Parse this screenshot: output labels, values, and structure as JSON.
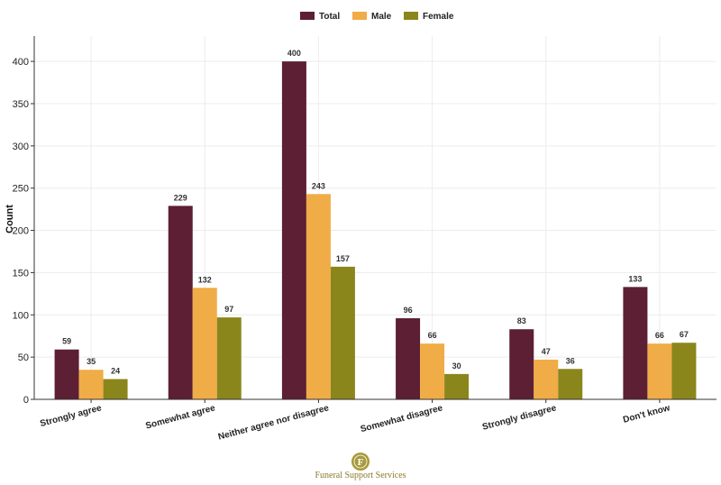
{
  "chart_data": {
    "type": "bar",
    "categories": [
      "Strongly agree",
      "Somewhat agree",
      "Neither agree nor disagree",
      "Somewhat disagree",
      "Strongly disagree",
      "Don't know"
    ],
    "series": [
      {
        "name": "Total",
        "values": [
          59,
          229,
          400,
          96,
          83,
          133
        ],
        "color": "#5c1f33"
      },
      {
        "name": "Male",
        "values": [
          35,
          132,
          243,
          66,
          47,
          66
        ],
        "color": "#f0ac46"
      },
      {
        "name": "Female",
        "values": [
          24,
          97,
          157,
          30,
          36,
          67
        ],
        "color": "#8b861c"
      }
    ],
    "ylabel": "Count",
    "xlabel": "",
    "ylim": [
      0,
      430
    ],
    "yticks": [
      0,
      50,
      100,
      150,
      200,
      250,
      300,
      350,
      400
    ],
    "grid": true,
    "legend_position": "top-center"
  },
  "logo": {
    "letter": "F",
    "text": "Funeral Support Services"
  }
}
